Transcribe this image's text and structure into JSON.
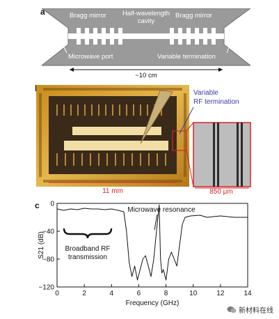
{
  "panels": {
    "a": {
      "label": "a",
      "bragg_left": "Bragg mirror",
      "cavity_line1": "Half-wavelength",
      "cavity_line2": "cavity",
      "bragg_right": "Bragg mirror",
      "port": "Microwave port",
      "termination": "Variable termination",
      "length": "~10 cm"
    },
    "b": {
      "label": "b",
      "rf_line1": "Variable",
      "rf_line2": "RF termination",
      "scale_left": "11 mm",
      "scale_right": "850 μm"
    },
    "c": {
      "label": "c",
      "annotation_resonance": "Microwave resonance",
      "annotation_broadband_line1": "Broadband RF",
      "annotation_broadband_line2": "transmission"
    }
  },
  "colors": {
    "device_gray": "#9a9a9a",
    "chip_gold": "#d9a63a",
    "annotation_blue": "#3a3aa8",
    "annotation_red": "#d8232a"
  },
  "watermark": {
    "icon": "wechat-logo-icon",
    "text": "新材料在线"
  },
  "chart_data": {
    "type": "line",
    "xlabel": "Frequency (GHz)",
    "ylabel": "S21 (dB)",
    "xlim": [
      0,
      14
    ],
    "ylim": [
      -120,
      0
    ],
    "xticks": [
      0,
      2,
      4,
      6,
      8,
      10,
      12,
      14
    ],
    "yticks": [
      0,
      -40,
      -80,
      -120
    ],
    "xtick_labels": [
      "0",
      "2",
      "4",
      "6",
      "8",
      "10",
      "12",
      "14"
    ],
    "ytick_labels": [
      "0",
      "−40",
      "−80",
      "−120"
    ],
    "grid": false,
    "series": [
      {
        "x": [
          0,
          0.5,
          1.0,
          1.5,
          2.0,
          2.5,
          3.0,
          3.5,
          4.0,
          4.5,
          4.9,
          5.1,
          5.3,
          5.5,
          5.7,
          5.9,
          6.1,
          6.3,
          6.5,
          6.7,
          6.9,
          7.1,
          7.3,
          7.5,
          7.6,
          7.7,
          7.8,
          8.0,
          8.2,
          8.4,
          8.6,
          8.8,
          9.0,
          9.2,
          9.4,
          9.8,
          10.5,
          11.0,
          12.0,
          13.0,
          14.0
        ],
        "y": [
          -8,
          -10,
          -8,
          -9,
          -7,
          -8,
          -8,
          -9,
          -8,
          -10,
          -12,
          -40,
          -85,
          -105,
          -90,
          -110,
          -95,
          -80,
          -75,
          -90,
          -105,
          -80,
          -40,
          -2,
          -80,
          -100,
          -95,
          -110,
          -80,
          -70,
          -80,
          -90,
          -60,
          -30,
          -20,
          -18,
          -17,
          -20,
          -18,
          -20,
          -20
        ]
      }
    ]
  }
}
